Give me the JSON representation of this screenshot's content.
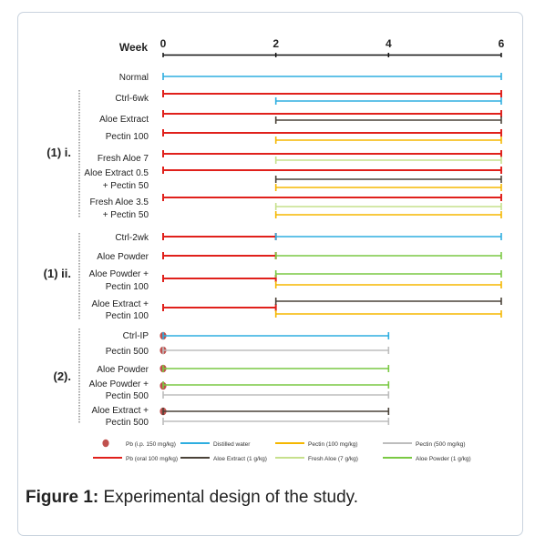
{
  "header": {
    "week_label": "Week",
    "ticks": [
      "0",
      "2",
      "4",
      "6"
    ]
  },
  "groups": [
    {
      "label": "(1) i."
    },
    {
      "label": "(1) ii."
    },
    {
      "label": "(2)."
    }
  ],
  "rows": [
    {
      "label": [
        "Normal"
      ],
      "lines": [
        {
          "type": "water",
          "start": 0,
          "end": 6
        }
      ]
    },
    {
      "label": [
        "Ctrl-6wk"
      ],
      "lines": [
        {
          "type": "pb_oral",
          "start": 0,
          "end": 6
        },
        {
          "type": "water",
          "start": 2,
          "end": 6
        }
      ]
    },
    {
      "label": [
        "Aloe Extract"
      ],
      "lines": [
        {
          "type": "pb_oral",
          "start": 0,
          "end": 6
        },
        {
          "type": "aloe_extract",
          "start": 2,
          "end": 6
        }
      ]
    },
    {
      "label": [
        "Pectin 100"
      ],
      "lines": [
        {
          "type": "pb_oral",
          "start": 0,
          "end": 6
        },
        {
          "type": "pectin_100",
          "start": 2,
          "end": 6
        }
      ]
    },
    {
      "label": [
        "Fresh Aloe 7"
      ],
      "lines": [
        {
          "type": "pb_oral",
          "start": 0,
          "end": 6
        },
        {
          "type": "fresh_aloe",
          "start": 2,
          "end": 6
        }
      ]
    },
    {
      "label": [
        "Aloe Extract 0.5",
        "+ Pectin 50"
      ],
      "lines": [
        {
          "type": "pb_oral",
          "start": 0,
          "end": 6
        },
        {
          "type": "aloe_extract",
          "start": 2,
          "end": 6
        },
        {
          "type": "pectin_100",
          "start": 2,
          "end": 6
        }
      ]
    },
    {
      "label": [
        "Fresh Aloe 3.5",
        "+ Pectin 50"
      ],
      "lines": [
        {
          "type": "pb_oral",
          "start": 0,
          "end": 6
        },
        {
          "type": "fresh_aloe",
          "start": 2,
          "end": 6
        },
        {
          "type": "pectin_100",
          "start": 2,
          "end": 6
        }
      ]
    },
    {
      "label": [
        "Ctrl-2wk"
      ],
      "lines": [
        {
          "type": "pb_oral",
          "start": 0,
          "end": 2
        },
        {
          "type": "water",
          "start": 2,
          "end": 6
        }
      ]
    },
    {
      "label": [
        "Aloe Powder"
      ],
      "lines": [
        {
          "type": "pb_oral",
          "start": 0,
          "end": 2
        },
        {
          "type": "aloe_powder",
          "start": 2,
          "end": 6
        }
      ]
    },
    {
      "label": [
        "Aloe Powder +",
        "Pectin 100"
      ],
      "lines": [
        {
          "type": "pb_oral",
          "start": 0,
          "end": 2
        },
        {
          "type": "aloe_powder",
          "start": 2,
          "end": 6
        },
        {
          "type": "pectin_100",
          "start": 2,
          "end": 6
        }
      ]
    },
    {
      "label": [
        "Aloe Extract +",
        "Pectin 100"
      ],
      "lines": [
        {
          "type": "pb_oral",
          "start": 0,
          "end": 2
        },
        {
          "type": "aloe_extract",
          "start": 2,
          "end": 6
        },
        {
          "type": "pectin_100",
          "start": 2,
          "end": 6
        }
      ]
    },
    {
      "label": [
        "Ctrl-IP"
      ],
      "lines": [
        {
          "type": "pb_ip",
          "start": 0,
          "end": 0
        },
        {
          "type": "water",
          "start": 0,
          "end": 4
        }
      ]
    },
    {
      "label": [
        "Pectin 500"
      ],
      "lines": [
        {
          "type": "pb_ip",
          "start": 0,
          "end": 0
        },
        {
          "type": "pectin_500",
          "start": 0,
          "end": 4
        }
      ]
    },
    {
      "label": [
        "Aloe Powder"
      ],
      "lines": [
        {
          "type": "pb_ip",
          "start": 0,
          "end": 0
        },
        {
          "type": "aloe_powder",
          "start": 0,
          "end": 4
        }
      ]
    },
    {
      "label": [
        "Aloe Powder +",
        "Pectin 500"
      ],
      "lines": [
        {
          "type": "pb_ip",
          "start": 0,
          "end": 0
        },
        {
          "type": "aloe_powder",
          "start": 0,
          "end": 4
        },
        {
          "type": "pectin_500",
          "start": 0,
          "end": 4
        }
      ]
    },
    {
      "label": [
        "Aloe Extract +",
        "Pectin 500"
      ],
      "lines": [
        {
          "type": "pb_ip",
          "start": 0,
          "end": 0
        },
        {
          "type": "aloe_extract",
          "start": 0,
          "end": 4
        },
        {
          "type": "pectin_500",
          "start": 0,
          "end": 4
        }
      ]
    }
  ],
  "legend": [
    {
      "key": "pb_ip",
      "label": "Pb (i.p. 150 mg/kg)",
      "color": "#c0504d",
      "marker": "dot"
    },
    {
      "key": "water",
      "label": "Distilled water",
      "color": "#2eaee0",
      "marker": "line"
    },
    {
      "key": "pectin_100",
      "label": "Pectin (100 mg/kg)",
      "color": "#f5b700",
      "marker": "line"
    },
    {
      "key": "pectin_500",
      "label": "Pectin (500 mg/kg)",
      "color": "#bdbdbd",
      "marker": "line"
    },
    {
      "key": "pb_oral",
      "label": "Pb (oral 100 mg/kg)",
      "color": "#e0201b",
      "marker": "line"
    },
    {
      "key": "aloe_extract",
      "label": "Aloe Extract (1 g/kg)",
      "color": "#4a4238",
      "marker": "line"
    },
    {
      "key": "fresh_aloe",
      "label": "Fresh Aloe  (7 g/kg)",
      "color": "#c6e08c",
      "marker": "line"
    },
    {
      "key": "aloe_powder",
      "label": "Aloe Powder  (1 g/kg)",
      "color": "#7ac943",
      "marker": "line"
    }
  ],
  "caption": {
    "bold": "Figure 1:",
    "text": " Experimental design of the study."
  }
}
